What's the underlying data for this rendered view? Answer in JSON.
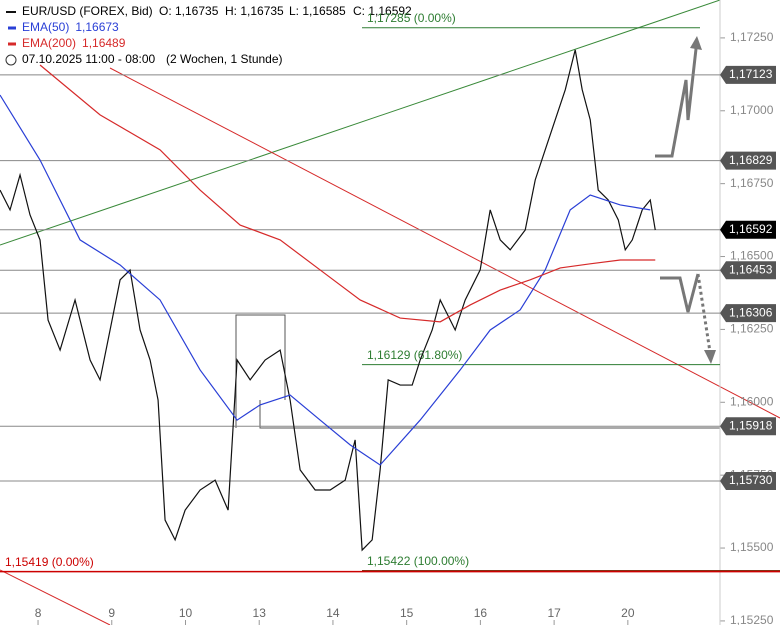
{
  "chart_data": {
    "type": "line",
    "header": {
      "symbol": "EUR/USD (FOREX, Bid)",
      "open": "O: 1,16735",
      "high": "H: 1,16735",
      "low": "L: 1,16585",
      "close": "C: 1,16592",
      "period": "07.10.2025 11:00 - 08:00",
      "range": "(2 Wochen, 1 Stunde)"
    },
    "xlim": [
      -0.516,
      9.25
    ],
    "ylim": [
      1.15236,
      1.1738
    ],
    "xticks": [
      {
        "value": 0,
        "label": "8"
      },
      {
        "value": 1,
        "label": "9"
      },
      {
        "value": 2,
        "label": "10"
      },
      {
        "value": 3,
        "label": "13"
      },
      {
        "value": 4,
        "label": "14"
      },
      {
        "value": 5,
        "label": "15"
      },
      {
        "value": 6,
        "label": "16"
      },
      {
        "value": 7,
        "label": "17"
      },
      {
        "value": 8,
        "label": "20"
      }
    ],
    "yticks": [
      {
        "value": 1.1725,
        "label": "1,17250"
      },
      {
        "value": 1.17,
        "label": "1,17000"
      },
      {
        "value": 1.1675,
        "label": "1,16750"
      },
      {
        "value": 1.165,
        "label": "1,16500"
      },
      {
        "value": 1.1625,
        "label": "1,16250"
      },
      {
        "value": 1.16,
        "label": "1,16000"
      },
      {
        "value": 1.1575,
        "label": "1,15750"
      },
      {
        "value": 1.155,
        "label": "1,15500"
      },
      {
        "value": 1.1525,
        "label": "1,15250"
      }
    ],
    "series": [
      {
        "name": "EUR/USD (FOREX, Bid)",
        "color": "#111111",
        "x": [
          -0.516,
          -0.38,
          -0.244,
          -0.109,
          0.027,
          0.136,
          0.299,
          0.502,
          0.706,
          0.841,
          0.977,
          1.113,
          1.248,
          1.384,
          1.52,
          1.628,
          1.723,
          1.859,
          1.995,
          2.198,
          2.402,
          2.578,
          2.7,
          2.877,
          3.08,
          3.284,
          3.419,
          3.555,
          3.759,
          3.962,
          4.166,
          4.301,
          4.396,
          4.532,
          4.64,
          4.749,
          4.912,
          5.075,
          5.183,
          5.346,
          5.455,
          5.658,
          5.794,
          5.997,
          6.133,
          6.269,
          6.404,
          6.608,
          6.744,
          6.879,
          7.015,
          7.151,
          7.286,
          7.381,
          7.49,
          7.598,
          7.734,
          7.87,
          7.965,
          8.06,
          8.195,
          8.304,
          8.372
        ],
        "values": [
          1.16728,
          1.1666,
          1.1678,
          1.16643,
          1.16557,
          1.16282,
          1.16179,
          1.16351,
          1.16145,
          1.16077,
          1.16248,
          1.1642,
          1.16454,
          1.16248,
          1.16145,
          1.16008,
          1.15596,
          1.15528,
          1.1563,
          1.15699,
          1.15733,
          1.1563,
          1.16145,
          1.16077,
          1.16145,
          1.16179,
          1.16008,
          1.15768,
          1.15699,
          1.15699,
          1.15733,
          1.15871,
          1.15493,
          1.15528,
          1.15768,
          1.16077,
          1.16059,
          1.16059,
          1.16145,
          1.16248,
          1.16351,
          1.16248,
          1.16351,
          1.16454,
          1.1666,
          1.16557,
          1.16523,
          1.16591,
          1.16763,
          1.16866,
          1.16969,
          1.17072,
          1.17209,
          1.17072,
          1.16969,
          1.16728,
          1.16694,
          1.16626,
          1.16523,
          1.16557,
          1.1666,
          1.16694,
          1.16591
        ]
      },
      {
        "name": "EMA(50)",
        "value_label": "1,16673",
        "color": "#2a3fd6",
        "x": [
          -0.516,
          0.027,
          0.57,
          1.113,
          1.655,
          2.198,
          2.7,
          3.012,
          3.419,
          3.826,
          4.233,
          4.64,
          5.183,
          5.726,
          6.133,
          6.54,
          6.879,
          7.218,
          7.49,
          7.897,
          8.304
        ],
        "values": [
          1.17054,
          1.16831,
          1.16557,
          1.16471,
          1.16351,
          1.16111,
          1.15939,
          1.15991,
          1.16025,
          1.15939,
          1.15854,
          1.15785,
          1.15939,
          1.16111,
          1.16248,
          1.16317,
          1.16454,
          1.1666,
          1.16711,
          1.16677,
          1.1666
        ]
      },
      {
        "name": "EMA(200)",
        "value_label": "1,16489",
        "color": "#d62a2a",
        "x": [
          0.027,
          0.841,
          1.655,
          2.198,
          2.741,
          3.284,
          3.826,
          4.369,
          4.912,
          5.455,
          5.862,
          6.269,
          6.676,
          7.083,
          7.49,
          7.897,
          8.372
        ],
        "values": [
          1.17157,
          1.16986,
          1.16866,
          1.16728,
          1.16608,
          1.16557,
          1.16454,
          1.16351,
          1.16289,
          1.16276,
          1.16334,
          1.16385,
          1.1642,
          1.16461,
          1.16475,
          1.16488,
          1.16488
        ]
      }
    ],
    "levels": [
      {
        "value": 1.17123,
        "label": "1,17123",
        "color": "#555555"
      },
      {
        "value": 1.16829,
        "label": "1,16829",
        "color": "#555555"
      },
      {
        "value": 1.16592,
        "label": "1,16592",
        "color": "#000000"
      },
      {
        "value": 1.16453,
        "label": "1,16453",
        "color": "#555555"
      },
      {
        "value": 1.16306,
        "label": "1,16306",
        "color": "#555555"
      },
      {
        "value": 1.15918,
        "label": "1,15918",
        "color": "#555555"
      },
      {
        "value": 1.1573,
        "label": "1,15730",
        "color": "#555555"
      }
    ],
    "annotations": [
      {
        "value": 1.17285,
        "text": "1,17285 (0.00%)",
        "color": "#2e7d32"
      },
      {
        "value": 1.16129,
        "text": "1,16129 (61.80%)",
        "color": "#2e7d32"
      },
      {
        "value": 1.15422,
        "text": "1,15422 (100.00%)",
        "color": "#2e7d32"
      },
      {
        "value": 1.15419,
        "text": "1,15419 (0.00%)",
        "color": "#cc0000"
      }
    ]
  }
}
